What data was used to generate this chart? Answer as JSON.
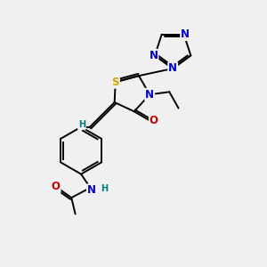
{
  "bg_color": "#f0f0f0",
  "bond_color": "#000000",
  "s_color": "#ccaa00",
  "n_color": "#0000cc",
  "o_color": "#cc0000",
  "h_color": "#008080",
  "font_size_atom": 8.5,
  "font_size_small": 7.0,
  "lw": 1.4,
  "xlim": [
    0,
    10
  ],
  "ylim": [
    0,
    10
  ]
}
